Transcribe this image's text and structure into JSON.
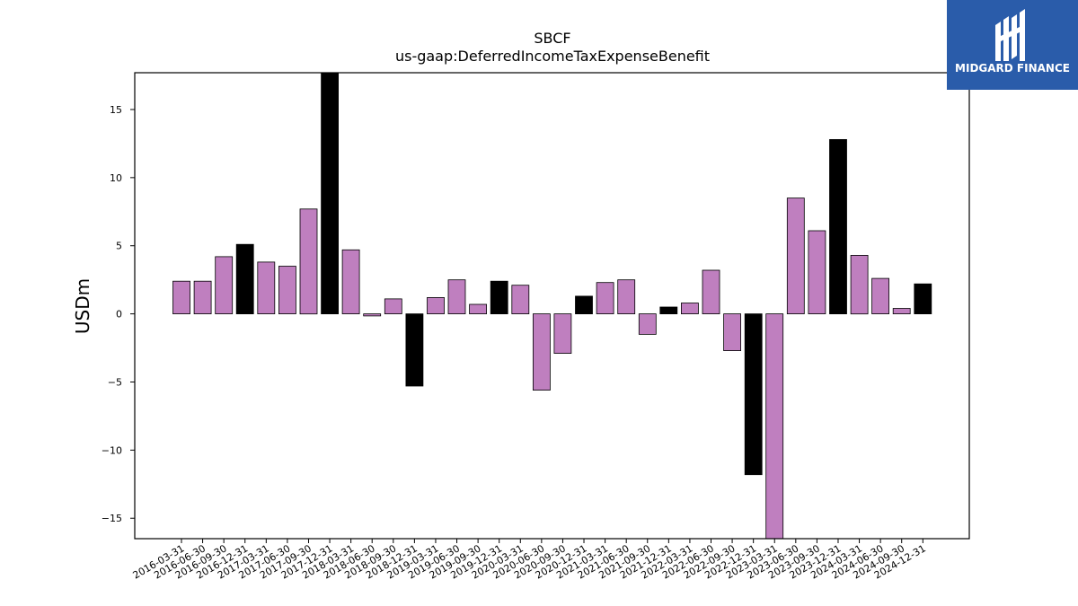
{
  "chart_data": {
    "type": "bar",
    "title": "SBCF",
    "subtitle": "us-gaap:DeferredIncomeTaxExpenseBenefit",
    "xlabel": "",
    "ylabel": "USDm",
    "ylim": [
      -16.5,
      17.7
    ],
    "yticks": [
      -15,
      -10,
      -5,
      0,
      5,
      10,
      15
    ],
    "yticklabels": [
      "−15",
      "−10",
      "−5",
      "0",
      "5",
      "10",
      "15"
    ],
    "grid": false,
    "categories": [
      "2016-03-31",
      "2016-06-30",
      "2016-09-30",
      "2016-12-31",
      "2017-03-31",
      "2017-06-30",
      "2017-09-30",
      "2017-12-31",
      "2018-03-31",
      "2018-06-30",
      "2018-09-30",
      "2018-12-31",
      "2019-03-31",
      "2019-06-30",
      "2019-09-30",
      "2019-12-31",
      "2020-03-31",
      "2020-06-30",
      "2020-09-30",
      "2020-12-31",
      "2021-03-31",
      "2021-06-30",
      "2021-09-30",
      "2021-12-31",
      "2022-03-31",
      "2022-06-30",
      "2022-09-30",
      "2022-12-31",
      "2023-03-31",
      "2023-06-30",
      "2023-09-30",
      "2023-12-31",
      "2024-03-31",
      "2024-06-30",
      "2024-09-30",
      "2024-12-31"
    ],
    "values": [
      2.4,
      2.4,
      4.2,
      5.1,
      3.8,
      3.5,
      7.7,
      18.0,
      4.7,
      -0.15,
      1.1,
      -5.3,
      1.2,
      2.5,
      0.7,
      2.4,
      2.1,
      -5.6,
      -2.9,
      1.3,
      2.3,
      2.5,
      -1.5,
      0.5,
      0.8,
      3.2,
      -2.7,
      -11.8,
      -17.0,
      8.5,
      6.1,
      12.8,
      4.3,
      2.6,
      0.4,
      2.2
    ],
    "colors": {
      "quarter": "#bf7fbf",
      "year_end": "#000000",
      "edge": "#000000"
    }
  },
  "logo": {
    "text": "MIDGARD FINANCE",
    "background": "#2a5caa"
  }
}
